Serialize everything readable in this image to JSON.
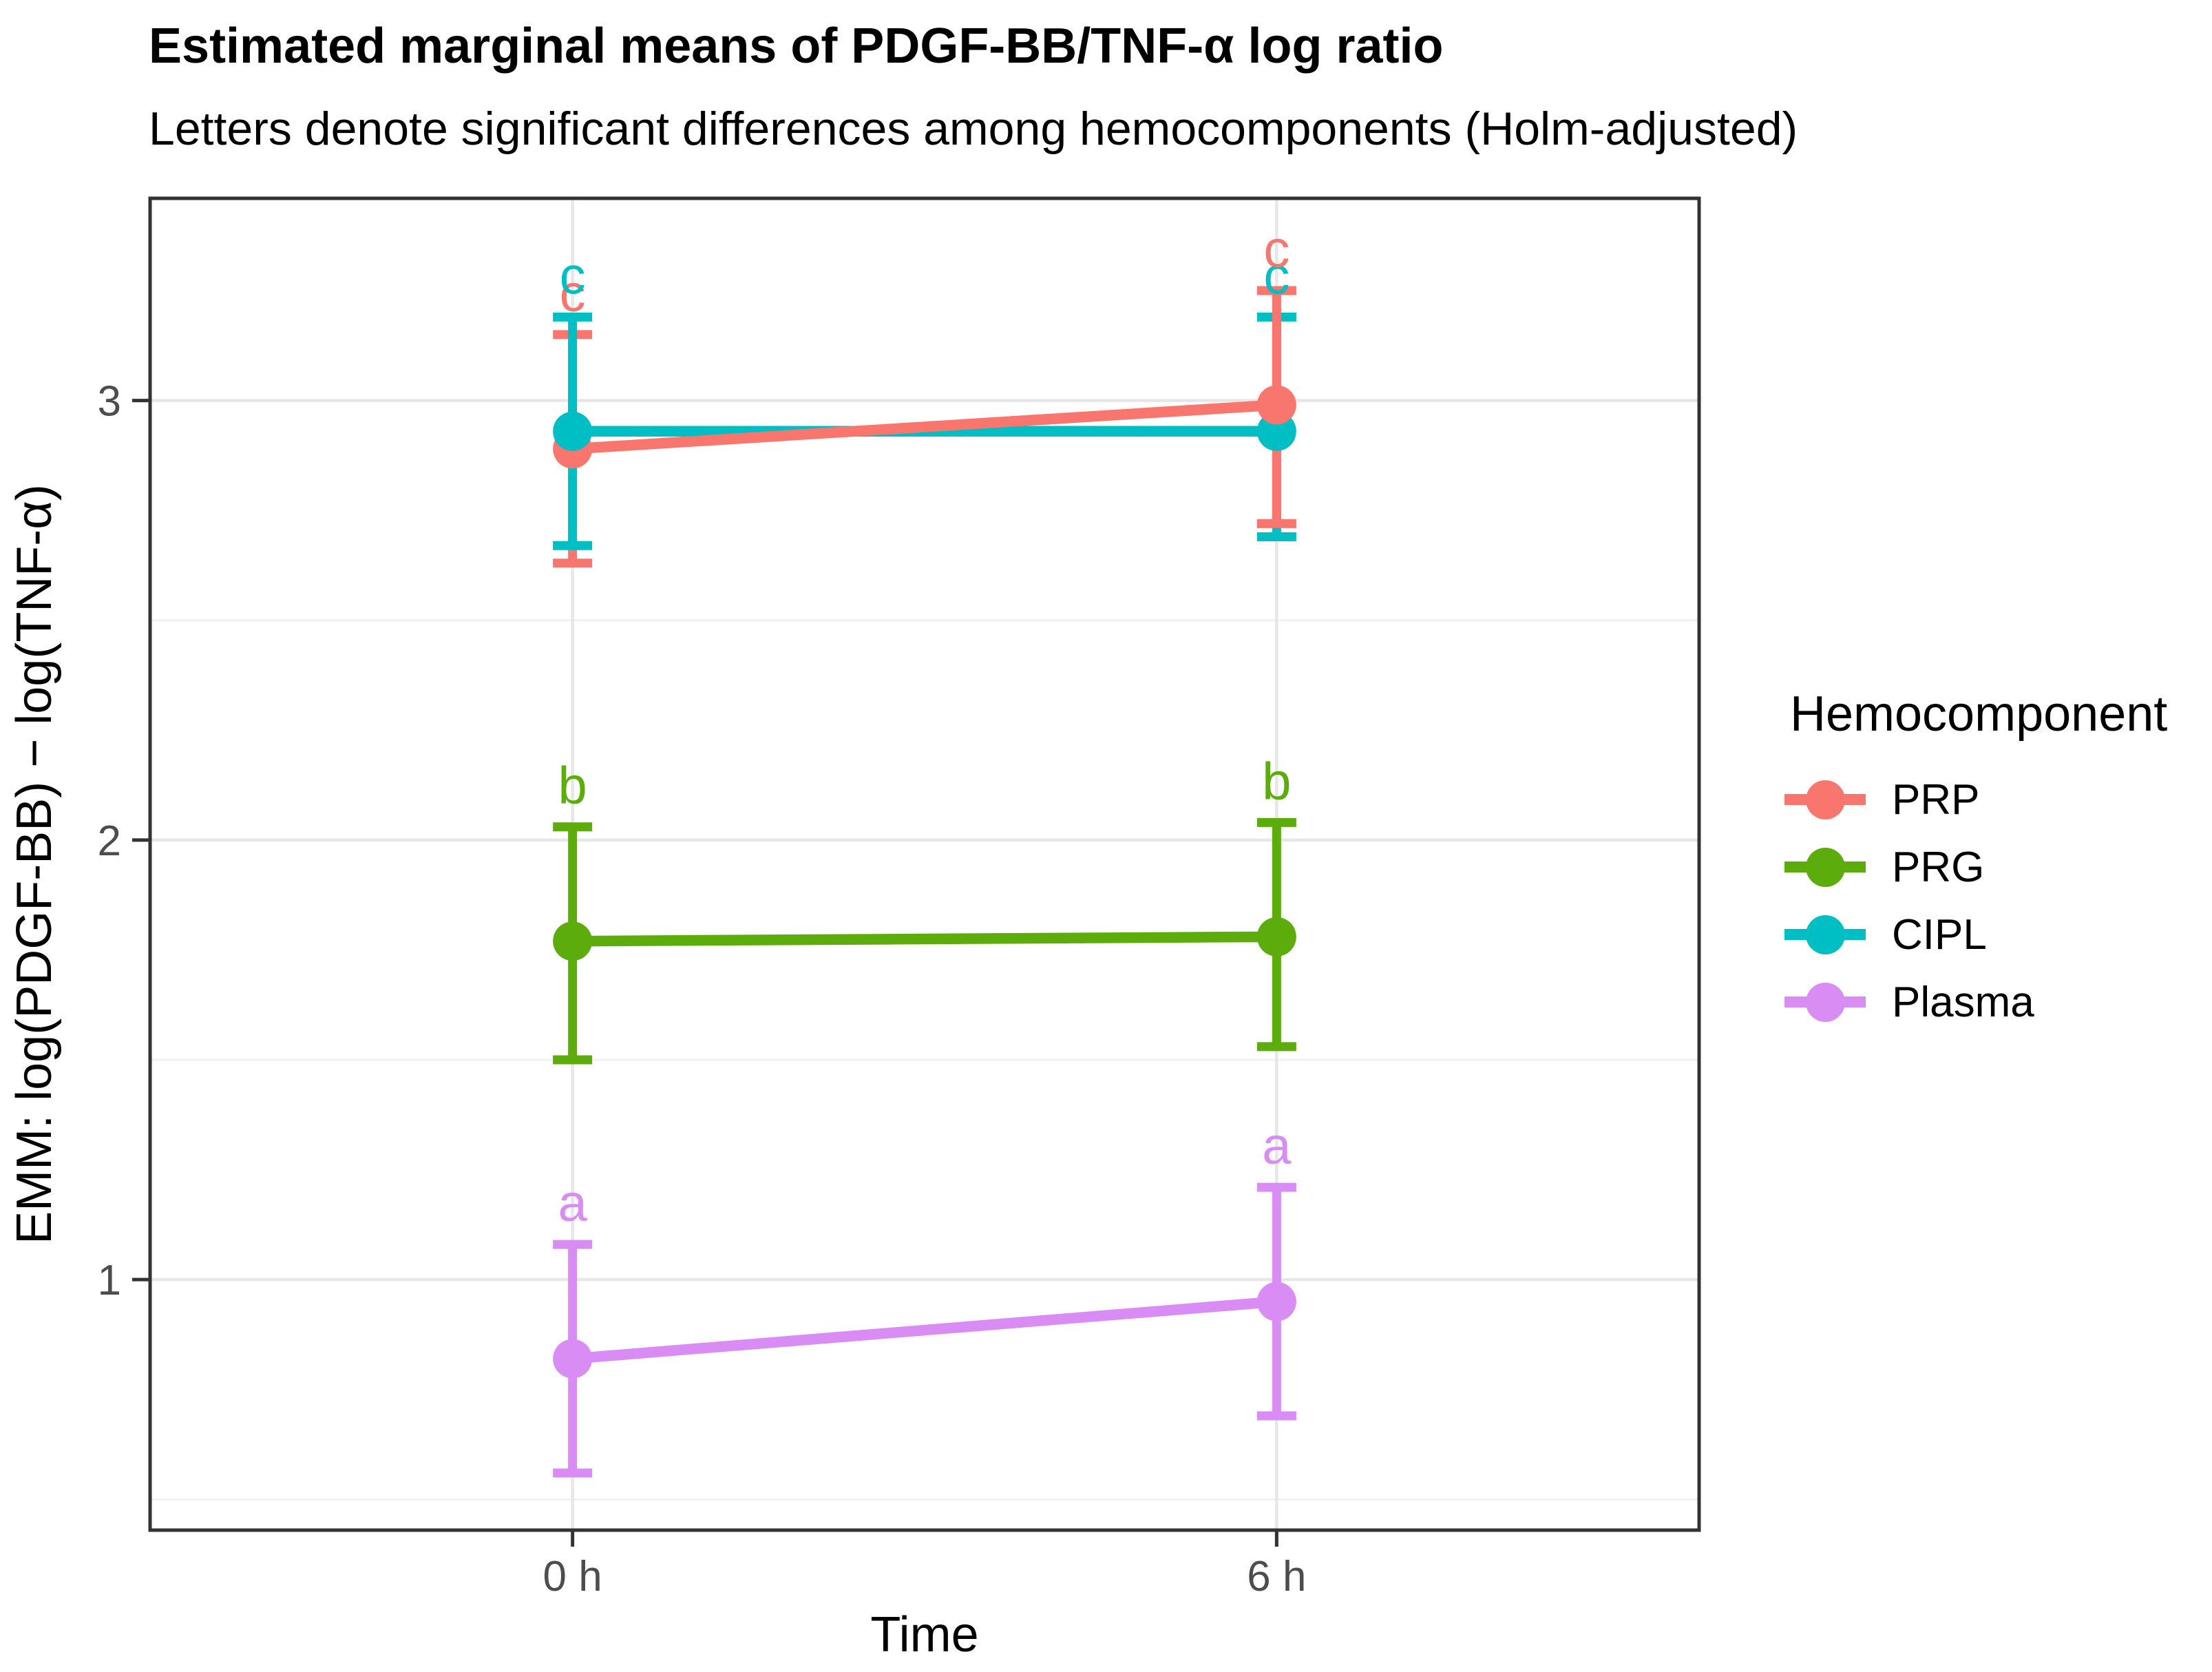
{
  "title": "Estimated marginal means of PDGF-BB/TNF-α log ratio",
  "subtitle": "Letters denote significant differences among hemocomponents (Holm-adjusted)",
  "chart_data": {
    "type": "line",
    "x_categories": [
      "0 h",
      "6 h"
    ],
    "xlabel": "Time",
    "ylabel": "EMM: log(PDGF-BB) − log(TNF-α)",
    "y_ticks": [
      1,
      2,
      3
    ],
    "y_minor_ticks": [
      0.5,
      1.5,
      2.5
    ],
    "ylim": [
      0.43,
      3.46
    ],
    "grid": true,
    "legend_position": "right",
    "legend_title": "Hemocomponent",
    "annotation_note": "Letters above error bars denote Holm-adjusted significance groups",
    "series": [
      {
        "name": "PRP",
        "color": "#F8766D",
        "means": [
          2.89,
          2.99
        ],
        "ci_low": [
          2.63,
          2.72
        ],
        "ci_high": [
          3.15,
          3.25
        ],
        "letters": [
          "c",
          "c"
        ]
      },
      {
        "name": "PRG",
        "color": "#5CAC0C",
        "means": [
          1.77,
          1.78
        ],
        "ci_low": [
          1.5,
          1.53
        ],
        "ci_high": [
          2.03,
          2.04
        ],
        "letters": [
          "b",
          "b"
        ]
      },
      {
        "name": "CIPL",
        "color": "#00BFC4",
        "means": [
          2.93,
          2.93
        ],
        "ci_low": [
          2.67,
          2.69
        ],
        "ci_high": [
          3.19,
          3.19
        ],
        "letters": [
          "c",
          "c"
        ]
      },
      {
        "name": "Plasma",
        "color": "#DA8CF5",
        "means": [
          0.82,
          0.95
        ],
        "ci_low": [
          0.56,
          0.69
        ],
        "ci_high": [
          1.08,
          1.21
        ],
        "letters": [
          "a",
          "a"
        ]
      }
    ],
    "colors": {
      "panel_border": "#333333",
      "tick_mark": "#333333",
      "tick_label": "#4D4D4D",
      "grid_major": "#E7E7E7",
      "grid_minor": "#F1F1F1",
      "background": "#FFFFFF"
    }
  }
}
